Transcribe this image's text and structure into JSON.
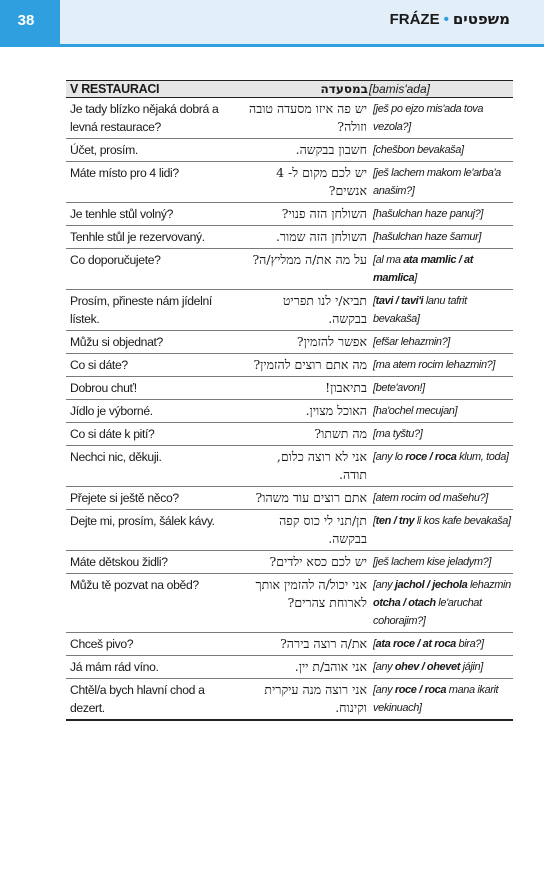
{
  "header": {
    "page_number": "38",
    "title_cz": "FRÁZE",
    "separator": "•",
    "title_he": "משפטים"
  },
  "section": {
    "title_cz": "V RESTAURACI",
    "title_he": "במסעדה",
    "title_tr": "[bamis'ada]"
  },
  "rows": [
    {
      "cz": "Je tady blízko nějaká dobrá a levná restaurace?",
      "he": "יש פה איזו מסעדה טובה וזולה?",
      "tr": "[ješ po ejzo mis'ada tova vezola?]"
    },
    {
      "cz": "Účet, prosím.",
      "he": "חשבון בבקשה.",
      "tr": "[chešbon bevakaša]"
    },
    {
      "cz": "Máte místo pro 4 lidi?",
      "he": "יש לכם מקום ל- 4 אנשים?",
      "tr": "[ješ lachem makom le'arba'a anašim?]"
    },
    {
      "cz": "Je tenhle stůl volný?",
      "he": "השולחן הזה פנוי?",
      "tr": "[hašulchan haze panuj?]"
    },
    {
      "cz": "Tenhle stůl je rezervovaný.",
      "he": "השולחן הזה שמור.",
      "tr": "[hašulchan haze šamur]"
    },
    {
      "cz": "Co doporučujete?",
      "he": "על מה את/ה ממליץ/ה?",
      "tr": "[al ma |ata mamlic / at mamlica|]"
    },
    {
      "cz": "Prosím, přineste nám jídelní lístek.",
      "he": "תביא/י לנו תפריט בבקשה.",
      "tr": "[|tavi / tavi'i| lanu tafrit bevakaša]"
    },
    {
      "cz": "Můžu si objednat?",
      "he": "אפשר להזמין?",
      "tr": "[efšar lehazmin?]"
    },
    {
      "cz": "Co si dáte?",
      "he": "מה אתם רוצים להזמין?",
      "tr": "[ma atem rocim lehazmin?]"
    },
    {
      "cz": "Dobrou chuť!",
      "he": "בתיאבון!",
      "tr": "[bete'avon!]"
    },
    {
      "cz": "Jídlo je výborné.",
      "he": "האוכל מצוין.",
      "tr": "[ha'ochel mecujan]"
    },
    {
      "cz": "Co si dáte k pití?",
      "he": "מה תשתו?",
      "tr": "[ma tyštu?]"
    },
    {
      "cz": "Nechci nic, děkuji.",
      "he": "אני לא רוצה כלום, תודה.",
      "tr": "[any lo |roce / roca| klum, toda]"
    },
    {
      "cz": "Přejete si ještě něco?",
      "he": "אתם רוצים עוד משהו?",
      "tr": "[atem rocim od mašehu?]"
    },
    {
      "cz": "Dejte mi, prosím, šálek kávy.",
      "he": "תן/תני לי כוס קפה בבקשה.",
      "tr": "[|ten / tny| li kos kafe bevakaša]"
    },
    {
      "cz": "Máte dětskou židli?",
      "he": "יש לכם כסא ילדים?",
      "tr": "[ješ lachem kise jeladym?]"
    },
    {
      "cz": "Můžu tě pozvat na oběd?",
      "he": "אני יכול/ה להזמין אותך לארוחת צהרים?",
      "tr": "[any |jachol / jechola| lehazmin |otcha / otach| le'aruchat cohorajim?]"
    },
    {
      "cz": "Chceš pivo?",
      "he": "את/ה רוצה בירה?",
      "tr": "[|ata roce / at roca| bira?]"
    },
    {
      "cz": "Já mám rád víno.",
      "he": "אני אוהב/ת יין.",
      "tr": "[any |ohev / ohevet| jájin]"
    },
    {
      "cz": "Chtěl/a bych hlavní chod a dezert.",
      "he": "אני רוצה מנה עיקרית וקינוח.",
      "tr": "[any |roce / roca| mana ikarit vekinuach]"
    }
  ]
}
